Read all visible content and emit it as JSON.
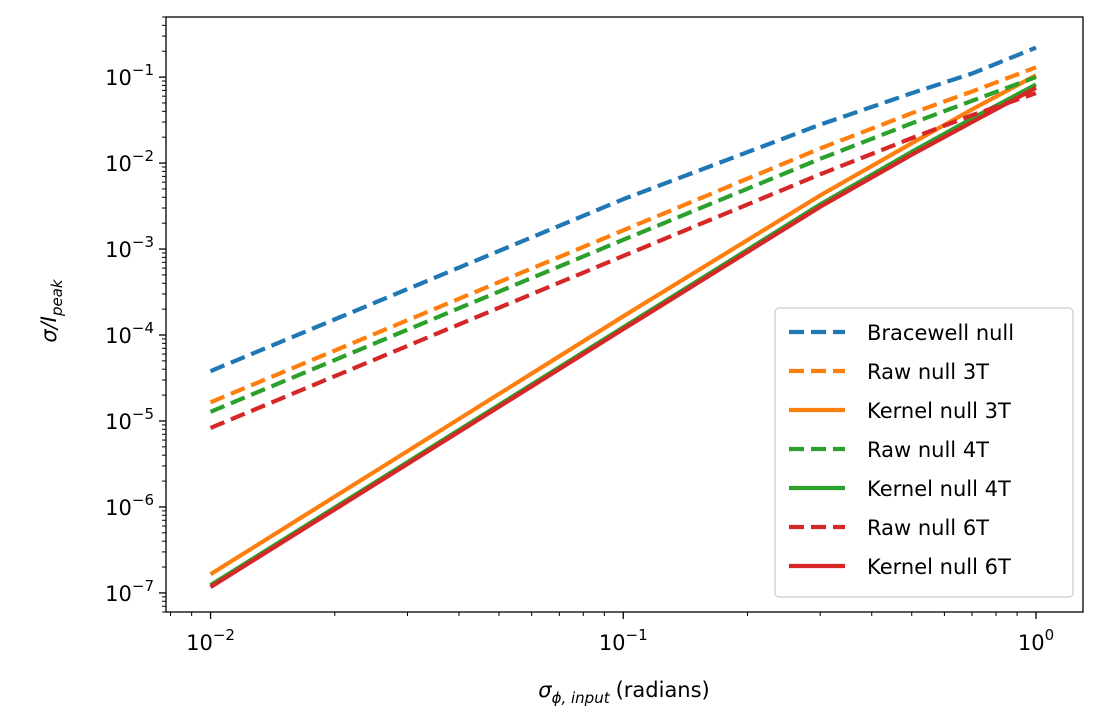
{
  "chart_data": {
    "type": "line",
    "xlabel": "(radians)",
    "xlabel_symbol": "σ",
    "xlabel_subscript": "ϕ, input",
    "ylabel": "σ/I",
    "ylabel_subscript": "peak",
    "xscale": "log",
    "yscale": "log",
    "xlim": [
      0.0078,
      1.3
    ],
    "ylim": [
      6e-08,
      0.5
    ],
    "x_ticks": [
      {
        "value": 0.01,
        "base": "10",
        "exp": "−2"
      },
      {
        "value": 0.1,
        "base": "10",
        "exp": "−1"
      },
      {
        "value": 1,
        "base": "10",
        "exp": "0"
      }
    ],
    "y_ticks": [
      {
        "value": 1e-07,
        "base": "10",
        "exp": "−7"
      },
      {
        "value": 1e-06,
        "base": "10",
        "exp": "−6"
      },
      {
        "value": 1e-05,
        "base": "10",
        "exp": "−5"
      },
      {
        "value": 0.0001,
        "base": "10",
        "exp": "−4"
      },
      {
        "value": 0.001,
        "base": "10",
        "exp": "−3"
      },
      {
        "value": 0.01,
        "base": "10",
        "exp": "−2"
      },
      {
        "value": 0.1,
        "base": "10",
        "exp": "−1"
      }
    ],
    "legend_position": "lower-right",
    "series": [
      {
        "name": "Bracewell null",
        "color": "#1f77b4",
        "style": "dashed",
        "x": [
          0.01,
          0.1,
          0.3,
          0.5,
          0.7,
          1.0
        ],
        "y": [
          3.8e-05,
          0.0038,
          0.028,
          0.065,
          0.11,
          0.22
        ]
      },
      {
        "name": "Raw null 3T",
        "color": "#ff7f0e",
        "style": "dashed",
        "x": [
          0.01,
          0.1,
          0.3,
          0.5,
          0.7,
          1.0
        ],
        "y": [
          1.65e-05,
          0.00165,
          0.0148,
          0.038,
          0.068,
          0.13
        ]
      },
      {
        "name": "Kernel null 3T",
        "color": "#ff7f0e",
        "style": "solid",
        "x": [
          0.01,
          0.1,
          0.3,
          0.5,
          0.7,
          1.0
        ],
        "y": [
          1.65e-07,
          0.000165,
          0.0042,
          0.017,
          0.042,
          0.105
        ]
      },
      {
        "name": "Raw null 4T",
        "color": "#2ca02c",
        "style": "dashed",
        "x": [
          0.01,
          0.1,
          0.3,
          0.5,
          0.7,
          1.0
        ],
        "y": [
          1.28e-05,
          0.00128,
          0.0112,
          0.029,
          0.053,
          0.1
        ]
      },
      {
        "name": "Kernel null 4T",
        "color": "#2ca02c",
        "style": "solid",
        "x": [
          0.01,
          0.1,
          0.3,
          0.5,
          0.7,
          1.0
        ],
        "y": [
          1.23e-07,
          0.000123,
          0.0033,
          0.0135,
          0.033,
          0.082
        ]
      },
      {
        "name": "Raw null 6T",
        "color": "#d62728",
        "style": "dashed",
        "x": [
          0.01,
          0.1,
          0.3,
          0.5,
          0.7,
          1.0
        ],
        "y": [
          8.3e-06,
          0.00083,
          0.0074,
          0.0195,
          0.036,
          0.065
        ]
      },
      {
        "name": "Kernel null 6T",
        "color": "#d62728",
        "style": "solid",
        "x": [
          0.01,
          0.1,
          0.3,
          0.5,
          0.7,
          1.0
        ],
        "y": [
          1.17e-07,
          0.000117,
          0.0031,
          0.0125,
          0.03,
          0.075
        ]
      }
    ]
  }
}
